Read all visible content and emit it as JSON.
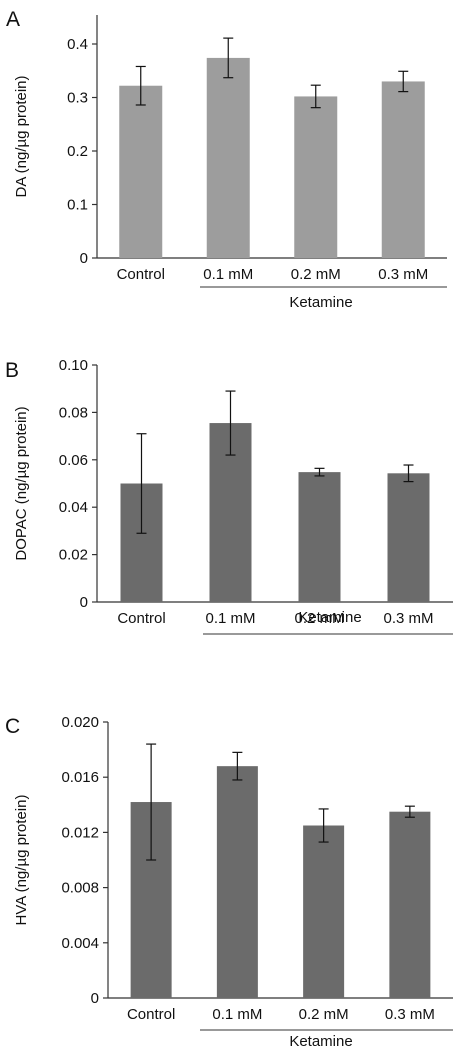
{
  "chart_data": [
    {
      "panel": "A",
      "type": "bar",
      "categories": [
        "Control",
        "0.1 mM",
        "0.2 mM",
        "0.3 mM"
      ],
      "values": [
        0.322,
        0.374,
        0.302,
        0.33
      ],
      "errors": [
        0.036,
        0.037,
        0.021,
        0.019
      ],
      "ylabel": "DA (ng/µg protein)",
      "yticks": [
        0,
        0.1,
        0.2,
        0.3,
        0.4
      ],
      "ytick_labels": [
        "0",
        "0.1",
        "0.2",
        "0.3",
        "0.4"
      ],
      "ylim": [
        0,
        0.45
      ],
      "group_label": "Ketamine",
      "bar_color": "#9d9d9d"
    },
    {
      "panel": "B",
      "type": "bar",
      "categories": [
        "Control",
        "0.1 mM",
        "0.2 mM",
        "0.3 mM"
      ],
      "values": [
        0.05,
        0.0755,
        0.0548,
        0.0543
      ],
      "errors": [
        0.021,
        0.0135,
        0.0016,
        0.0035
      ],
      "ylabel": "DOPAC (ng/µg protein)",
      "yticks": [
        0,
        0.02,
        0.04,
        0.06,
        0.08,
        0.1
      ],
      "ytick_labels": [
        "0",
        "0.02",
        "0.04",
        "0.06",
        "0.08",
        "0.10"
      ],
      "ylim": [
        0,
        0.1
      ],
      "group_label": "Ketamine",
      "bar_color": "#6b6b6b"
    },
    {
      "panel": "C",
      "type": "bar",
      "categories": [
        "Control",
        "0.1 mM",
        "0.2 mM",
        "0.3 mM"
      ],
      "values": [
        0.0142,
        0.0168,
        0.0125,
        0.0135
      ],
      "errors": [
        0.0042,
        0.001,
        0.0012,
        0.0004
      ],
      "ylabel": "HVA (ng/µg protein)",
      "yticks": [
        0,
        0.004,
        0.008,
        0.012,
        0.016,
        0.02
      ],
      "ytick_labels": [
        "0",
        "0.004",
        "0.008",
        "0.012",
        "0.016",
        "0.020"
      ],
      "ylim": [
        0,
        0.02
      ],
      "group_label": "Ketamine",
      "bar_color": "#6b6b6b"
    }
  ]
}
